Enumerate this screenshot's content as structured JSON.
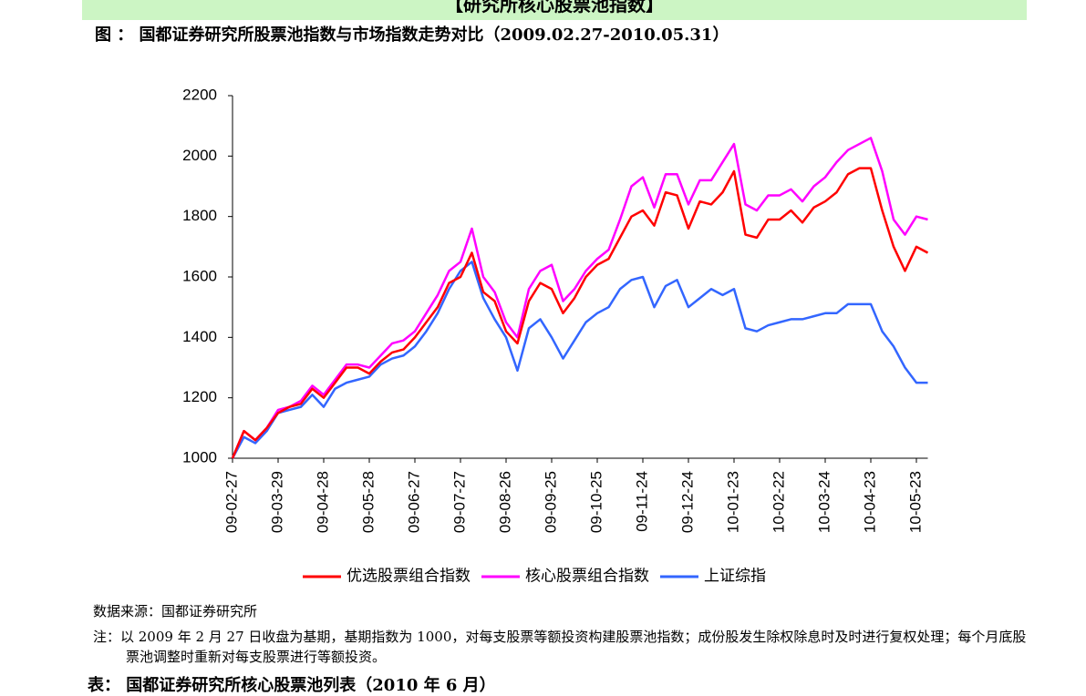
{
  "header": {
    "title": "【研究所核心股票池指数】"
  },
  "caption": "图 ： 国都证券研究所股票池指数与市场指数走势对比（2009.02.27-2010.05.31）",
  "chart_data": {
    "type": "line",
    "categories": [
      "09-02-27",
      null,
      null,
      null,
      "09-03-29",
      null,
      null,
      null,
      "09-04-28",
      null,
      null,
      null,
      "09-05-28",
      null,
      null,
      null,
      "09-06-27",
      null,
      null,
      null,
      "09-07-27",
      null,
      null,
      null,
      "09-08-26",
      null,
      null,
      null,
      "09-09-25",
      null,
      null,
      null,
      "09-10-25",
      null,
      null,
      null,
      "09-11-24",
      null,
      null,
      null,
      "09-12-24",
      null,
      null,
      null,
      "10-01-23",
      null,
      null,
      null,
      "10-02-22",
      null,
      null,
      null,
      "10-03-24",
      null,
      null,
      null,
      "10-04-23",
      null,
      null,
      null,
      "10-05-23",
      null
    ],
    "series": [
      {
        "name": "优选股票组合指数",
        "color": "#ff0000",
        "values": [
          1000,
          1090,
          1060,
          1100,
          1150,
          1170,
          1180,
          1230,
          1200,
          1250,
          1300,
          1300,
          1280,
          1320,
          1350,
          1360,
          1400,
          1450,
          1500,
          1580,
          1600,
          1680,
          1550,
          1520,
          1420,
          1380,
          1520,
          1580,
          1560,
          1480,
          1530,
          1600,
          1640,
          1660,
          1730,
          1800,
          1820,
          1770,
          1880,
          1870,
          1760,
          1850,
          1840,
          1880,
          1950,
          1740,
          1730,
          1790,
          1790,
          1820,
          1780,
          1830,
          1850,
          1880,
          1940,
          1960,
          1960,
          1820,
          1700,
          1620,
          1700,
          1680
        ]
      },
      {
        "name": "核心股票组合指数",
        "color": "#ff00ff",
        "values": [
          1000,
          1090,
          1060,
          1100,
          1160,
          1170,
          1190,
          1240,
          1210,
          1260,
          1310,
          1310,
          1300,
          1340,
          1380,
          1390,
          1420,
          1480,
          1540,
          1620,
          1650,
          1760,
          1600,
          1550,
          1450,
          1400,
          1560,
          1620,
          1640,
          1520,
          1560,
          1620,
          1660,
          1690,
          1790,
          1900,
          1930,
          1830,
          1940,
          1940,
          1840,
          1920,
          1920,
          1980,
          2040,
          1840,
          1820,
          1870,
          1870,
          1890,
          1850,
          1900,
          1930,
          1980,
          2020,
          2040,
          2060,
          1950,
          1790,
          1740,
          1800,
          1790
        ]
      },
      {
        "name": "上证综指",
        "color": "#3366ff",
        "values": [
          1000,
          1070,
          1050,
          1090,
          1150,
          1160,
          1170,
          1210,
          1170,
          1230,
          1250,
          1260,
          1270,
          1310,
          1330,
          1340,
          1370,
          1420,
          1480,
          1560,
          1620,
          1650,
          1530,
          1460,
          1400,
          1290,
          1430,
          1460,
          1400,
          1330,
          1390,
          1450,
          1480,
          1500,
          1560,
          1590,
          1600,
          1500,
          1570,
          1590,
          1500,
          1530,
          1560,
          1540,
          1560,
          1430,
          1420,
          1440,
          1450,
          1460,
          1460,
          1470,
          1480,
          1480,
          1510,
          1510,
          1510,
          1420,
          1370,
          1300,
          1250,
          1250
        ]
      }
    ],
    "ylim": [
      1000,
      2200
    ],
    "yticks": [
      1000,
      1200,
      1400,
      1600,
      1800,
      2000,
      2200
    ],
    "legend": "bottom"
  },
  "source": "数据来源：国都证券研究所",
  "note": "注：以 2009 年 2 月 27 日收盘为基期，基期指数为 1000，对每支股票等额投资构建股票池指数；成份股发生除权除息时及时进行复权处理；每个月底股票池调整时重新对每支股票进行等额投资。",
  "next_caption": "表： 国都证券研究所核心股票池列表（2010 年 6 月）"
}
